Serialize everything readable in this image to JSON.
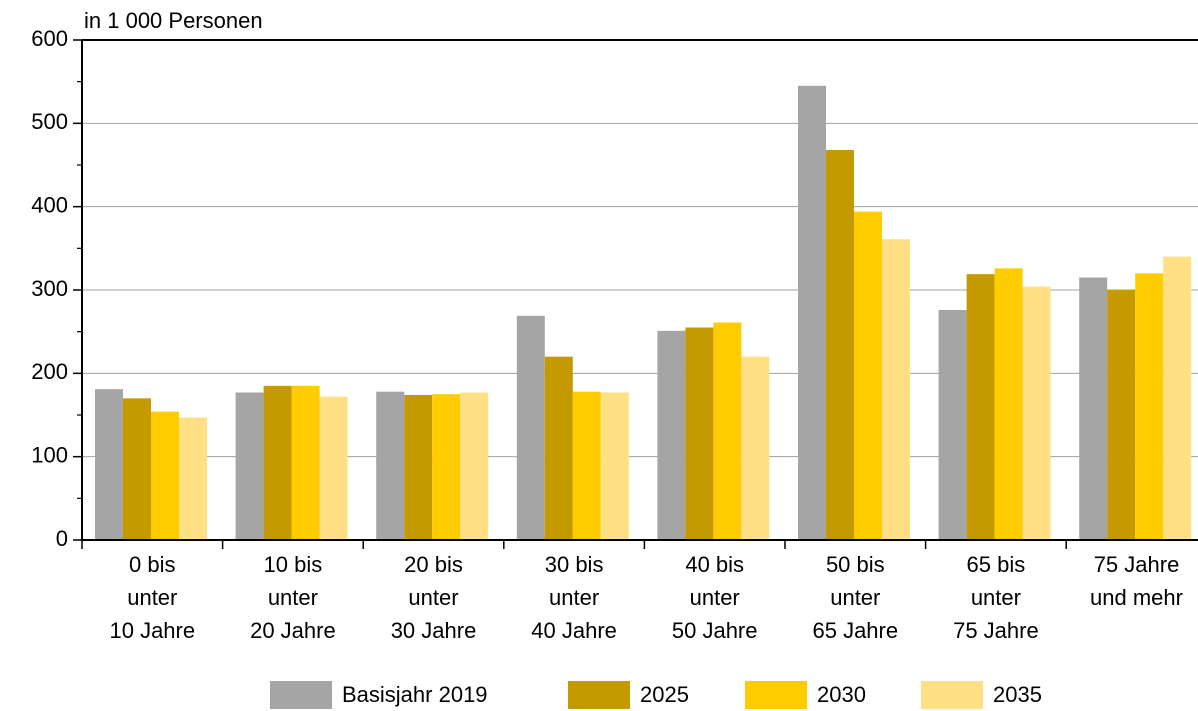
{
  "chart_data": {
    "type": "bar",
    "title": "in 1 000 Personen",
    "categories": [
      "0 bis\nunter\n10 Jahre",
      "10 bis\nunter\n20 Jahre",
      "20 bis\nunter\n30 Jahre",
      "30 bis\nunter\n40 Jahre",
      "40 bis\nunter\n50 Jahre",
      "50 bis\nunter\n65 Jahre",
      "65 bis\nunter\n75 Jahre",
      "75 Jahre\nund mehr"
    ],
    "series": [
      {
        "name": "Basisjahr 2019",
        "color": "#a5a5a5",
        "values": [
          181,
          177,
          178,
          269,
          251,
          545,
          276,
          315
        ]
      },
      {
        "name": "2025",
        "color": "#c49a00",
        "values": [
          170,
          185,
          174,
          220,
          255,
          468,
          319,
          300
        ]
      },
      {
        "name": "2030",
        "color": "#ffcc00",
        "values": [
          154,
          185,
          175,
          178,
          261,
          394,
          326,
          320
        ]
      },
      {
        "name": "2035",
        "color": "#ffe085",
        "values": [
          147,
          172,
          177,
          177,
          220,
          361,
          304,
          340
        ]
      }
    ],
    "ylim": [
      0,
      600
    ],
    "yticks": [
      0,
      100,
      200,
      300,
      400,
      500,
      600
    ],
    "minor_yticks": [
      50,
      150,
      250,
      350,
      450,
      550
    ],
    "grid": true,
    "legend": "bottom"
  }
}
